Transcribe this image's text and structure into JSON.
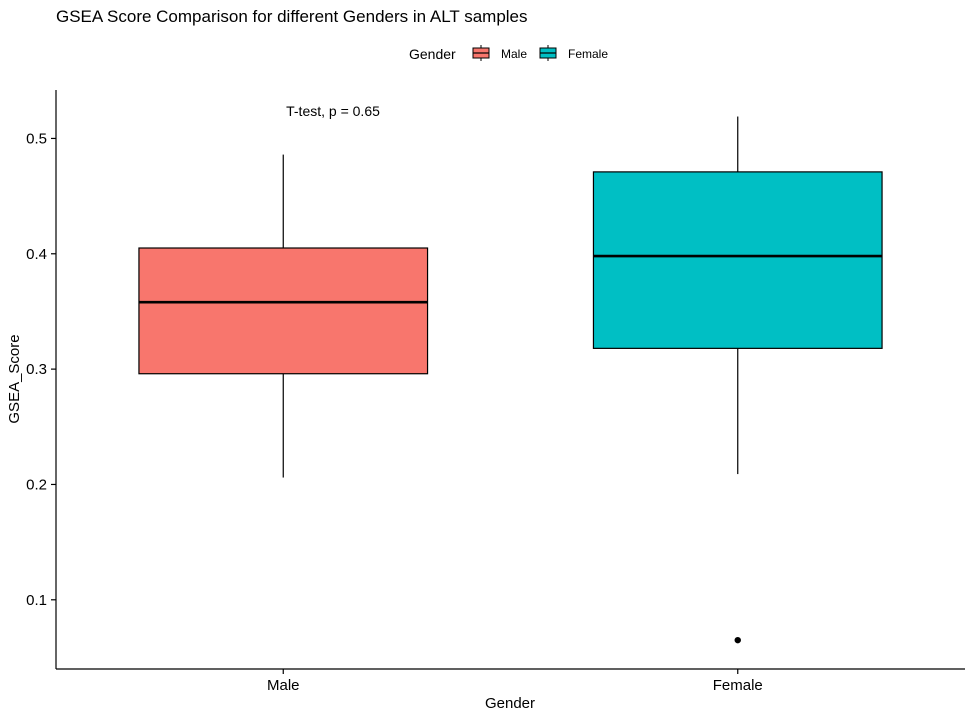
{
  "chart_data": {
    "type": "box",
    "title": "GSEA Score Comparison for different Genders in ALT samples",
    "xlabel": "Gender",
    "ylabel": "GSEA_Score",
    "ylim": [
      0.04,
      0.542
    ],
    "yticks": [
      0.1,
      0.2,
      0.3,
      0.4,
      0.5
    ],
    "ytick_labels": [
      "0.1",
      "0.2",
      "0.3",
      "0.4",
      "0.5"
    ],
    "categories": [
      "Male",
      "Female"
    ],
    "legend": {
      "title": "Gender",
      "position": "top",
      "entries": [
        "Male",
        "Female"
      ]
    },
    "annotation": "T-test, p = 0.65",
    "grid": false,
    "boxes": [
      {
        "name": "Male",
        "color": "#F8766D",
        "whisker_low": 0.206,
        "q1": 0.296,
        "median": 0.358,
        "q3": 0.405,
        "whisker_high": 0.486,
        "outliers": []
      },
      {
        "name": "Female",
        "color": "#00BFC4",
        "whisker_low": 0.209,
        "q1": 0.318,
        "median": 0.398,
        "q3": 0.471,
        "whisker_high": 0.519,
        "outliers": [
          0.065
        ]
      }
    ]
  }
}
